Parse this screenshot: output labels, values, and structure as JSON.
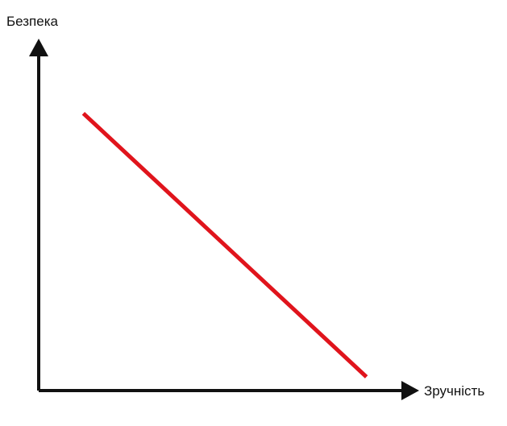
{
  "chart_data": {
    "type": "line",
    "title": "",
    "xlabel": "Зручність",
    "ylabel": "Безпека",
    "xlim": [
      0,
      10
    ],
    "ylim": [
      0,
      10
    ],
    "grid": false,
    "series": [
      {
        "color": "#e0141c",
        "x": [
          1.2,
          8.8
        ],
        "y": [
          8.1,
          0.4
        ]
      }
    ]
  }
}
